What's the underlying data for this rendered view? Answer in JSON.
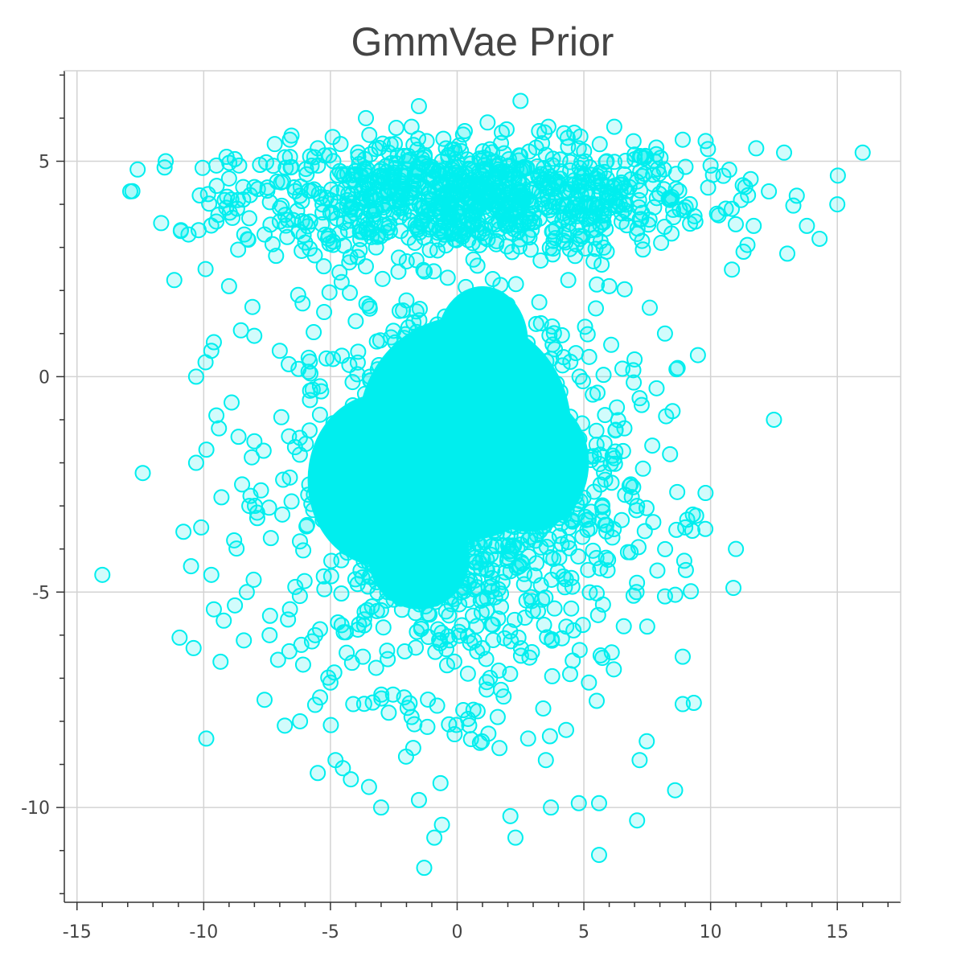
{
  "chart_data": {
    "type": "scatter",
    "title": "GmmVae Prior",
    "xlabel": "",
    "ylabel": "",
    "xlim": [
      -15.5,
      17.5
    ],
    "ylim": [
      -12.2,
      7.1
    ],
    "x_ticks": [
      -15,
      -10,
      -5,
      0,
      5,
      10,
      15
    ],
    "y_ticks": [
      5,
      0,
      -5,
      -10
    ],
    "x_tick_labels": [
      "-15",
      "-10",
      "-5",
      "0",
      "5",
      "10",
      "15"
    ],
    "y_tick_labels": [
      "5",
      "0",
      "-5",
      "-10"
    ],
    "grid": true,
    "legend": "none",
    "marker_color": "#00eeee",
    "marker_fill_opacity": 0.18,
    "series": [
      {
        "points": [
          [
            -11.5,
            5.0
          ],
          [
            -10.9,
            3.4
          ],
          [
            -10.6,
            3.3
          ],
          [
            -10.2,
            3.4
          ],
          [
            -9.5,
            4.9
          ],
          [
            -9.0,
            4.6
          ],
          [
            -8.6,
            4.9
          ],
          [
            -8.4,
            3.3
          ],
          [
            -8.0,
            4.4
          ],
          [
            -7.6,
            3.3
          ],
          [
            -7.0,
            3.6
          ],
          [
            -6.6,
            5.5
          ],
          [
            -6.2,
            4.2
          ],
          [
            -5.8,
            3.6
          ],
          [
            -5.5,
            5.3
          ],
          [
            -5.0,
            4.1
          ],
          [
            -4.6,
            5.4
          ],
          [
            -4.0,
            4.7
          ],
          [
            -3.6,
            6.0
          ],
          [
            -3.2,
            3.0
          ],
          [
            -2.7,
            5.2
          ],
          [
            -2.1,
            3.8
          ],
          [
            -1.8,
            5.8
          ],
          [
            -1.3,
            4.4
          ],
          [
            -0.6,
            5.0
          ],
          [
            0.3,
            5.7
          ],
          [
            1.2,
            5.9
          ],
          [
            1.5,
            4.0
          ],
          [
            2.0,
            3.5
          ],
          [
            2.5,
            6.4
          ],
          [
            3.0,
            4.6
          ],
          [
            3.6,
            5.8
          ],
          [
            4.2,
            4.0
          ],
          [
            4.8,
            5.3
          ],
          [
            5.3,
            3.4
          ],
          [
            5.9,
            5.0
          ],
          [
            6.2,
            5.8
          ],
          [
            6.8,
            4.4
          ],
          [
            7.3,
            3.8
          ],
          [
            7.8,
            5.0
          ],
          [
            8.4,
            4.1
          ],
          [
            8.9,
            5.5
          ],
          [
            9.4,
            3.6
          ],
          [
            10.0,
            4.9
          ],
          [
            10.6,
            3.9
          ],
          [
            11.2,
            4.1
          ],
          [
            11.7,
            3.5
          ],
          [
            12.3,
            4.3
          ],
          [
            12.9,
            5.2
          ],
          [
            13.4,
            4.2
          ],
          [
            13.8,
            3.5
          ],
          [
            14.3,
            3.2
          ],
          [
            15.0,
            4.0
          ],
          [
            16.0,
            5.2
          ],
          [
            11.8,
            5.3
          ],
          [
            11.3,
            2.9
          ],
          [
            -9.6,
            0.8
          ],
          [
            -9.7,
            0.6
          ],
          [
            -10.3,
            0.0
          ],
          [
            -9.5,
            -0.9
          ],
          [
            -9.4,
            -1.2
          ],
          [
            -10.3,
            -2.0
          ],
          [
            -9.3,
            -2.8
          ],
          [
            -10.1,
            -3.5
          ],
          [
            -10.8,
            -3.6
          ],
          [
            -10.5,
            -4.4
          ],
          [
            -9.7,
            -4.6
          ],
          [
            -9.6,
            -5.4
          ],
          [
            -10.4,
            -6.3
          ],
          [
            -9.9,
            -8.4
          ],
          [
            -14.0,
            -4.6
          ],
          [
            -9.0,
            2.1
          ],
          [
            -7.0,
            0.6
          ],
          [
            -6.1,
            1.7
          ],
          [
            -5.7,
            -0.3
          ],
          [
            -8.9,
            -0.6
          ],
          [
            -8.0,
            -1.5
          ],
          [
            -8.2,
            -3.0
          ],
          [
            -8.8,
            -3.8
          ],
          [
            -8.3,
            -5.0
          ],
          [
            -7.4,
            -6.0
          ],
          [
            -7.6,
            -7.5
          ],
          [
            -6.8,
            -8.1
          ],
          [
            -6.2,
            -8.0
          ],
          [
            -5.5,
            -9.2
          ],
          [
            -4.8,
            -8.9
          ],
          [
            -3.0,
            -10.0
          ],
          [
            -1.3,
            -11.4
          ],
          [
            -0.9,
            -10.7
          ],
          [
            -0.6,
            -10.4
          ],
          [
            2.1,
            -10.2
          ],
          [
            2.3,
            -10.7
          ],
          [
            3.7,
            -10.0
          ],
          [
            4.8,
            -9.9
          ],
          [
            5.6,
            -9.9
          ],
          [
            5.6,
            -11.1
          ],
          [
            7.1,
            -10.3
          ],
          [
            8.6,
            -9.6
          ],
          [
            7.2,
            -8.9
          ],
          [
            8.9,
            -7.6
          ],
          [
            8.9,
            -6.5
          ],
          [
            9.0,
            -3.5
          ],
          [
            9.3,
            -3.2
          ],
          [
            9.8,
            -2.7
          ],
          [
            11.0,
            -4.0
          ],
          [
            12.5,
            -1.0
          ],
          [
            9.5,
            0.5
          ],
          [
            8.7,
            0.2
          ],
          [
            8.2,
            1.0
          ],
          [
            7.6,
            1.6
          ],
          [
            6.0,
            2.1
          ],
          [
            5.7,
            2.6
          ],
          [
            -6.9,
            -3.2
          ],
          [
            -5.6,
            -6.0
          ],
          [
            -5.0,
            -7.1
          ],
          [
            -4.1,
            -7.6
          ],
          [
            -2.7,
            -7.8
          ],
          [
            -1.8,
            -7.9
          ],
          [
            -0.1,
            -8.3
          ],
          [
            0.9,
            -8.5
          ],
          [
            1.6,
            -7.9
          ],
          [
            2.8,
            -8.4
          ],
          [
            3.5,
            -8.9
          ],
          [
            4.3,
            -8.2
          ],
          [
            5.2,
            -7.1
          ],
          [
            6.1,
            -6.4
          ],
          [
            7.5,
            -5.8
          ],
          [
            8.2,
            -5.1
          ],
          [
            7.9,
            -4.5
          ],
          [
            7.1,
            -3.0
          ],
          [
            7.7,
            -1.6
          ],
          [
            8.4,
            -1.8
          ],
          [
            8.5,
            -0.8
          ],
          [
            7.2,
            -0.5
          ],
          [
            6.6,
            -1.2
          ],
          [
            7.0,
            0.4
          ]
        ]
      }
    ]
  }
}
